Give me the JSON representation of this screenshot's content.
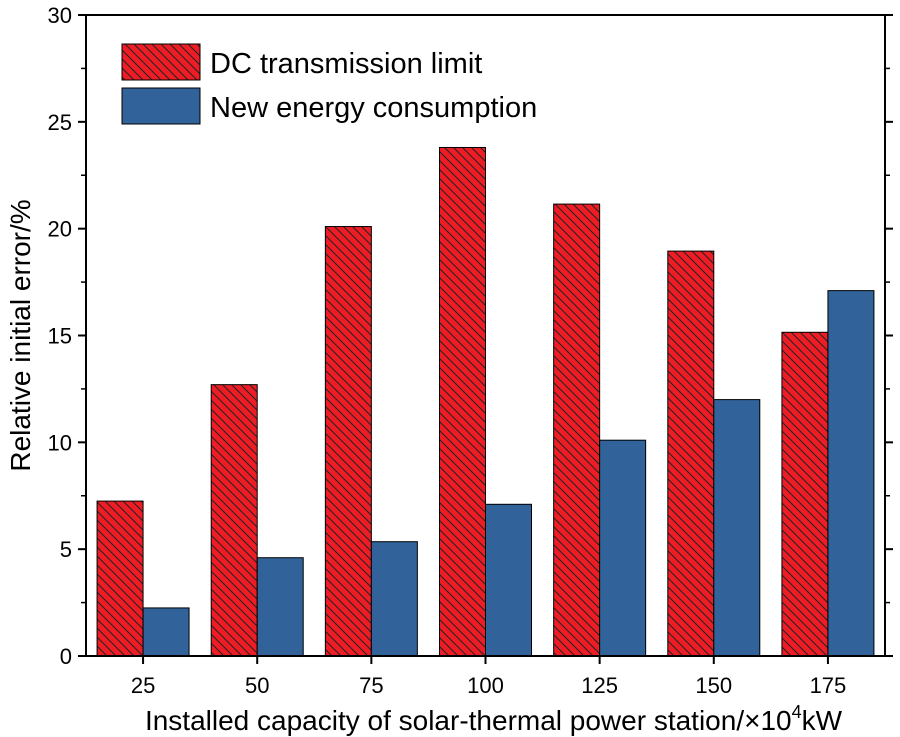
{
  "chart_data": {
    "type": "bar",
    "categories": [
      "25",
      "50",
      "75",
      "100",
      "125",
      "150",
      "175"
    ],
    "series": [
      {
        "name": "DC transmission limit",
        "values": [
          7.25,
          12.7,
          20.1,
          23.8,
          21.15,
          18.95,
          15.15
        ],
        "color": "#ee1c25",
        "pattern": "diagonal-hatch"
      },
      {
        "name": "New energy consumption",
        "values": [
          2.25,
          4.6,
          5.35,
          7.1,
          10.1,
          12.0,
          17.1
        ],
        "color": "#31639a",
        "pattern": "solid"
      }
    ],
    "title": "",
    "xlabel": "Installed capacity of solar-thermal power station/×10⁴kW",
    "xlabel_main": "Installed capacity of solar-thermal power station/×10",
    "xlabel_sup": "4",
    "xlabel_unit": "kW",
    "ylabel": "Relative initial error/%",
    "ylim": [
      0,
      30
    ],
    "yticks": [
      "0",
      "5",
      "10",
      "15",
      "20",
      "25",
      "30"
    ],
    "grid": false,
    "legend_position": "top-left"
  }
}
